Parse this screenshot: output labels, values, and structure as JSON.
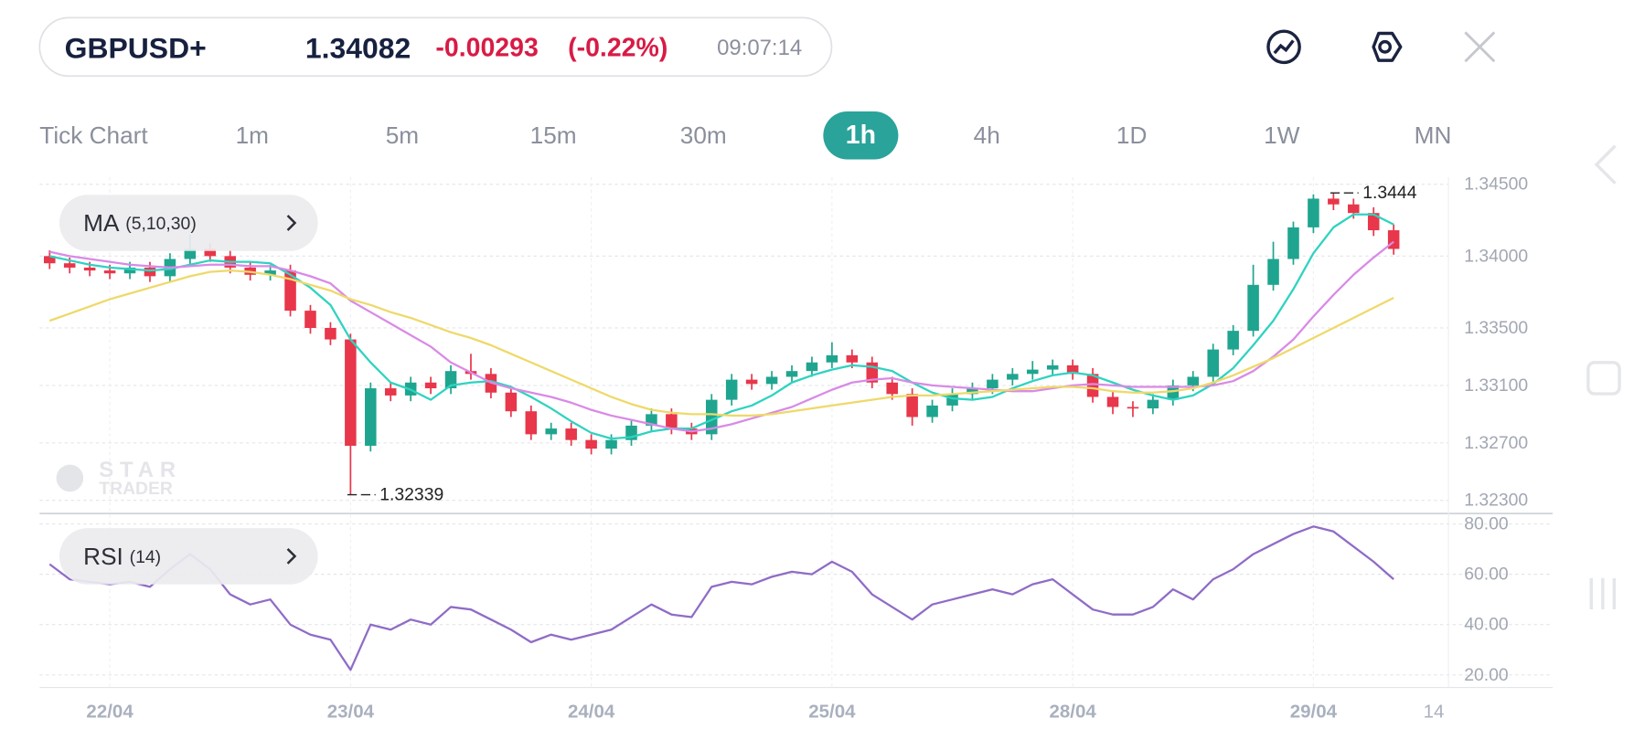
{
  "header": {
    "symbol": "GBPUSD+",
    "price": "1.34082",
    "change": "-0.00293",
    "change_pct": "(-0.22%)",
    "time": "09:07:14"
  },
  "timeframes": {
    "labels": [
      "Tick Chart",
      "1m",
      "5m",
      "15m",
      "30m",
      "1h",
      "4h",
      "1D",
      "1W",
      "MN"
    ],
    "active_index": 5
  },
  "watermark": {
    "line1": "STAR",
    "line2": "TRADER"
  },
  "chart_data": [
    {
      "type": "candlestick",
      "indicator": {
        "name": "MA",
        "params": "(5,10,30)"
      },
      "up_color": "#1fa58f",
      "down_color": "#e8364a",
      "grid": true,
      "categories": [
        null,
        null,
        null,
        "22/04",
        null,
        null,
        null,
        null,
        null,
        null,
        null,
        null,
        null,
        null,
        null,
        "23/04",
        null,
        null,
        null,
        null,
        null,
        null,
        null,
        null,
        null,
        null,
        null,
        "24/04",
        null,
        null,
        null,
        null,
        null,
        null,
        null,
        null,
        null,
        null,
        null,
        "25/04",
        null,
        null,
        null,
        null,
        null,
        null,
        null,
        null,
        null,
        null,
        null,
        "28/04",
        null,
        null,
        null,
        null,
        null,
        null,
        null,
        null,
        null,
        null,
        null,
        "29/04",
        null,
        null,
        null,
        null,
        null,
        "14"
      ],
      "open": [
        1.34,
        1.3395,
        1.3392,
        1.339,
        1.3388,
        1.3392,
        1.3386,
        1.3398,
        1.3405,
        1.34,
        1.3392,
        1.3387,
        1.339,
        1.3362,
        1.335,
        1.3342,
        1.3268,
        1.3308,
        1.3303,
        1.3312,
        1.3308,
        1.332,
        1.3318,
        1.3305,
        1.3292,
        1.3276,
        1.328,
        1.3272,
        1.3266,
        1.3272,
        1.3282,
        1.329,
        1.328,
        1.3276,
        1.33,
        1.3314,
        1.3311,
        1.3316,
        1.332,
        1.3326,
        1.3331,
        1.3326,
        1.3312,
        1.3304,
        1.3288,
        1.3296,
        1.3304,
        1.3308,
        1.3314,
        1.3318,
        1.3321,
        1.3324,
        1.3318,
        1.3302,
        1.3295,
        1.3294,
        1.33,
        1.331,
        1.3316,
        1.3335,
        1.3348,
        1.338,
        1.3398,
        1.342,
        1.344,
        1.3436,
        1.343,
        1.3418,
        null,
        null
      ],
      "high": [
        1.3404,
        1.3399,
        1.3396,
        1.3394,
        1.3396,
        1.3396,
        1.3402,
        1.3415,
        1.3409,
        1.3404,
        1.3396,
        1.3394,
        1.3394,
        1.3366,
        1.3354,
        1.3346,
        1.3312,
        1.3312,
        1.3316,
        1.3316,
        1.3324,
        1.3332,
        1.3322,
        1.3309,
        1.3296,
        1.3284,
        1.3284,
        1.3276,
        1.3276,
        1.3286,
        1.3294,
        1.3294,
        1.3284,
        1.3304,
        1.3318,
        1.3318,
        1.332,
        1.3324,
        1.333,
        1.334,
        1.3335,
        1.333,
        1.3316,
        1.3308,
        1.33,
        1.3308,
        1.3312,
        1.3318,
        1.3322,
        1.3327,
        1.3328,
        1.3328,
        1.3322,
        1.3306,
        1.3299,
        1.3304,
        1.3314,
        1.332,
        1.3339,
        1.3352,
        1.3394,
        1.341,
        1.3424,
        1.3443,
        1.3444,
        1.344,
        1.3434,
        1.3422,
        null,
        null
      ],
      "low": [
        1.3391,
        1.3388,
        1.3386,
        1.3384,
        1.3384,
        1.3382,
        1.3382,
        1.3394,
        1.3396,
        1.3388,
        1.3383,
        1.3383,
        1.3358,
        1.3346,
        1.3338,
        1.32339,
        1.3264,
        1.3299,
        1.3299,
        1.3304,
        1.3304,
        1.3314,
        1.3301,
        1.3288,
        1.3272,
        1.3272,
        1.3268,
        1.3262,
        1.3262,
        1.3268,
        1.3278,
        1.3276,
        1.3272,
        1.3272,
        1.3296,
        1.3307,
        1.3307,
        1.3312,
        1.3316,
        1.3322,
        1.3322,
        1.3308,
        1.33,
        1.3282,
        1.3284,
        1.3292,
        1.33,
        1.3304,
        1.331,
        1.3314,
        1.3317,
        1.3314,
        1.3298,
        1.329,
        1.3288,
        1.329,
        1.3296,
        1.3306,
        1.3312,
        1.3331,
        1.3344,
        1.3376,
        1.3394,
        1.3416,
        1.3432,
        1.3426,
        1.3414,
        1.3401,
        null,
        null
      ],
      "close": [
        1.3395,
        1.3392,
        1.339,
        1.3388,
        1.3392,
        1.3386,
        1.3398,
        1.3405,
        1.34,
        1.3392,
        1.3387,
        1.339,
        1.3362,
        1.335,
        1.3342,
        1.3268,
        1.3308,
        1.3303,
        1.3312,
        1.3308,
        1.332,
        1.3318,
        1.3305,
        1.3292,
        1.3276,
        1.328,
        1.3272,
        1.3266,
        1.3272,
        1.3282,
        1.329,
        1.328,
        1.3276,
        1.33,
        1.3314,
        1.3311,
        1.3316,
        1.332,
        1.3326,
        1.3331,
        1.3326,
        1.3312,
        1.3304,
        1.3288,
        1.3296,
        1.3304,
        1.3308,
        1.3314,
        1.3318,
        1.3321,
        1.3324,
        1.3318,
        1.3302,
        1.3295,
        1.3294,
        1.33,
        1.331,
        1.3316,
        1.3335,
        1.3348,
        1.338,
        1.3398,
        1.342,
        1.344,
        1.3436,
        1.343,
        1.3418,
        1.3405,
        null,
        null
      ],
      "series": [
        {
          "color": "#2ed3c0",
          "values": [
            1.34,
            1.3397,
            1.3394,
            1.3392,
            1.3391,
            1.339,
            1.3391,
            1.3394,
            1.3397,
            1.3396,
            1.3396,
            1.3395,
            1.3387,
            1.3378,
            1.3366,
            1.3342,
            1.3326,
            1.3312,
            1.3307,
            1.33,
            1.331,
            1.3312,
            1.3313,
            1.3309,
            1.3302,
            1.3294,
            1.3285,
            1.3277,
            1.3273,
            1.3274,
            1.3278,
            1.328,
            1.328,
            1.3286,
            1.3292,
            1.3296,
            1.3303,
            1.3312,
            1.3317,
            1.3321,
            1.3324,
            1.3323,
            1.332,
            1.3312,
            1.3305,
            1.3301,
            1.33,
            1.3302,
            1.3308,
            1.3313,
            1.3317,
            1.3319,
            1.3317,
            1.3312,
            1.3307,
            1.3303,
            1.33,
            1.3303,
            1.3311,
            1.3322,
            1.3338,
            1.3355,
            1.3377,
            1.3402,
            1.342,
            1.3429,
            1.3429,
            1.3422,
            null,
            null
          ]
        },
        {
          "color": "#d98ae6",
          "values": [
            1.3403,
            1.34,
            1.3398,
            1.3396,
            1.3394,
            1.3393,
            1.3392,
            1.3393,
            1.3394,
            1.3394,
            1.3393,
            1.3393,
            1.339,
            1.3386,
            1.3381,
            1.3369,
            1.3361,
            1.3353,
            1.3345,
            1.3337,
            1.3326,
            1.3319,
            1.3312,
            1.3308,
            1.3305,
            1.3302,
            1.3298,
            1.3293,
            1.3289,
            1.3286,
            1.3283,
            1.328,
            1.3278,
            1.328,
            1.3283,
            1.3287,
            1.3291,
            1.3295,
            1.3301,
            1.3307,
            1.3312,
            1.3314,
            1.3315,
            1.3312,
            1.331,
            1.3309,
            1.3308,
            1.3307,
            1.3306,
            1.3306,
            1.3308,
            1.331,
            1.3311,
            1.331,
            1.3309,
            1.3309,
            1.3309,
            1.3309,
            1.331,
            1.3313,
            1.332,
            1.333,
            1.3342,
            1.3358,
            1.3373,
            1.3387,
            1.3399,
            1.341,
            null,
            null
          ]
        },
        {
          "color": "#eed96a",
          "values": [
            1.3355,
            1.336,
            1.3365,
            1.337,
            1.3374,
            1.3378,
            1.3382,
            1.3386,
            1.3389,
            1.339,
            1.3389,
            1.3387,
            1.3384,
            1.338,
            1.3376,
            1.337,
            1.3366,
            1.3361,
            1.3357,
            1.3352,
            1.3347,
            1.3343,
            1.3338,
            1.3332,
            1.3326,
            1.332,
            1.3314,
            1.3308,
            1.3302,
            1.3297,
            1.3293,
            1.3291,
            1.329,
            1.329,
            1.3289,
            1.3289,
            1.329,
            1.3292,
            1.3294,
            1.3296,
            1.3298,
            1.33,
            1.3302,
            1.3303,
            1.3303,
            1.3304,
            1.3305,
            1.3306,
            1.3307,
            1.3308,
            1.3309,
            1.3309,
            1.3308,
            1.3306,
            1.3305,
            1.3305,
            1.3306,
            1.3308,
            1.3312,
            1.3317,
            1.3323,
            1.3329,
            1.3336,
            1.3343,
            1.335,
            1.3357,
            1.3364,
            1.3371,
            null,
            null
          ]
        }
      ],
      "ylim": [
        1.3223,
        1.3455
      ],
      "yticks": [
        {
          "value": 1.345,
          "label": "1.34500"
        },
        {
          "value": 1.34,
          "label": "1.34000"
        },
        {
          "value": 1.335,
          "label": "1.33500"
        },
        {
          "value": 1.331,
          "label": "1.33100"
        },
        {
          "value": 1.327,
          "label": "1.32700"
        },
        {
          "value": 1.323,
          "label": "1.32300"
        }
      ]
    },
    {
      "type": "line",
      "indicator": {
        "name": "RSI",
        "params": "(14)"
      },
      "color": "#8f6cc6",
      "grid": true,
      "values": [
        64,
        58,
        57,
        56,
        57,
        55,
        62,
        68,
        62,
        52,
        48,
        50,
        40,
        36,
        34,
        22,
        40,
        38,
        42,
        40,
        47,
        46,
        42,
        38,
        33,
        36,
        34,
        36,
        38,
        43,
        48,
        44,
        43,
        55,
        57,
        56,
        59,
        61,
        60,
        65,
        61,
        52,
        47,
        42,
        48,
        50,
        52,
        54,
        52,
        56,
        58,
        52,
        46,
        44,
        44,
        47,
        54,
        50,
        58,
        62,
        68,
        72,
        76,
        79,
        77,
        71,
        65,
        58,
        null,
        null
      ],
      "ylim": [
        15,
        83.3
      ],
      "yticks": [
        {
          "value": 80,
          "label": "80.00"
        },
        {
          "value": 60,
          "label": "60.00"
        },
        {
          "value": 40,
          "label": "40.00"
        },
        {
          "value": 20,
          "label": "20.00"
        }
      ]
    }
  ]
}
